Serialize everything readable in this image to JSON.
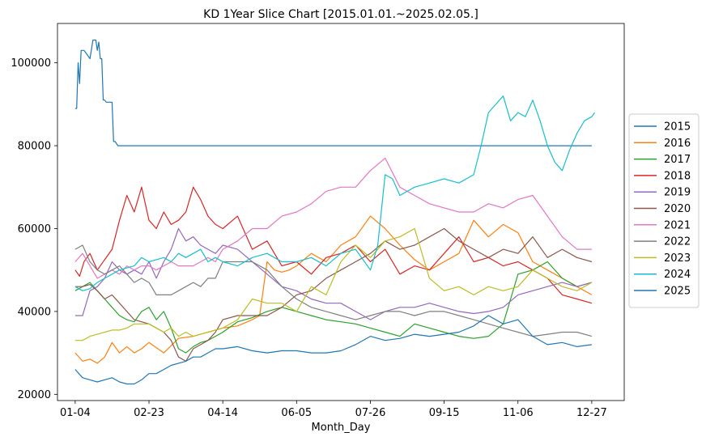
{
  "chart_data": {
    "type": "line",
    "title": "KD 1Year Slice Chart [2015.01.01.~2025.02.05.]",
    "xlabel": "Month_Day",
    "ylabel": "",
    "xlim": [
      -12,
      372
    ],
    "ylim": [
      18500,
      109500
    ],
    "x_ticks": [
      {
        "label": "01-04",
        "value": 0
      },
      {
        "label": "02-23",
        "value": 50
      },
      {
        "label": "04-14",
        "value": 100
      },
      {
        "label": "06-05",
        "value": 150
      },
      {
        "label": "07-26",
        "value": 200
      },
      {
        "label": "09-15",
        "value": 250
      },
      {
        "label": "11-06",
        "value": 300
      },
      {
        "label": "12-27",
        "value": 350
      }
    ],
    "y_ticks": [
      20000,
      40000,
      60000,
      80000,
      100000
    ],
    "grid": false,
    "legend": "right",
    "series": [
      {
        "name": "2015",
        "color": "#1f77b4",
        "x": [
          0,
          1,
          2,
          3,
          4,
          5,
          6,
          8,
          10,
          12,
          14,
          15,
          16,
          17,
          18,
          19,
          20,
          21,
          25,
          26,
          27,
          28,
          29,
          30,
          32,
          35,
          100,
          200,
          300,
          350
        ],
        "y": [
          89000,
          89000,
          100000,
          95000,
          103000,
          103000,
          103000,
          102000,
          101000,
          105500,
          105500,
          103000,
          105000,
          101000,
          101000,
          91000,
          91000,
          90500,
          90500,
          81000,
          81000,
          80500,
          80000,
          80000,
          80000,
          80000,
          80000,
          80000,
          80000,
          80000
        ]
      },
      {
        "name": "2016",
        "color": "#ff7f0e",
        "x": [
          0,
          5,
          10,
          15,
          20,
          25,
          30,
          35,
          40,
          45,
          50,
          60,
          70,
          80,
          90,
          100,
          110,
          120,
          125,
          130,
          135,
          140,
          145,
          150,
          160,
          170,
          180,
          190,
          200,
          210,
          220,
          230,
          240,
          250,
          260,
          270,
          280,
          290,
          300,
          310,
          320,
          330,
          340,
          350
        ],
        "y": [
          30000,
          28000,
          28500,
          27500,
          29000,
          32500,
          30000,
          31500,
          30000,
          31000,
          32500,
          30000,
          33500,
          34000,
          35000,
          36000,
          36500,
          38000,
          39000,
          52000,
          50000,
          49500,
          50000,
          51000,
          54000,
          52000,
          56000,
          58000,
          63000,
          60000,
          56000,
          52500,
          50000,
          52000,
          54000,
          62000,
          58000,
          61000,
          59000,
          52000,
          50000,
          48000,
          46000,
          44000
        ]
      },
      {
        "name": "2017",
        "color": "#2ca02c",
        "x": [
          0,
          5,
          10,
          15,
          20,
          25,
          30,
          35,
          40,
          45,
          50,
          55,
          60,
          65,
          70,
          75,
          80,
          85,
          90,
          95,
          100,
          110,
          120,
          130,
          140,
          150,
          160,
          170,
          180,
          190,
          200,
          210,
          220,
          230,
          240,
          250,
          260,
          270,
          280,
          290,
          300,
          310,
          320,
          330,
          340,
          350
        ],
        "y": [
          45000,
          46000,
          47000,
          45000,
          43000,
          41000,
          39000,
          38000,
          37500,
          40000,
          41000,
          38000,
          40000,
          36000,
          31000,
          30000,
          31500,
          32500,
          33000,
          34000,
          35000,
          37500,
          38500,
          40000,
          41000,
          40000,
          39000,
          38000,
          37500,
          37000,
          36000,
          35000,
          34000,
          37000,
          36000,
          35000,
          34000,
          33500,
          34000,
          37000,
          49000,
          50000,
          52000,
          48000,
          46000,
          47000
        ]
      },
      {
        "name": "2018",
        "color": "#d62728",
        "x": [
          0,
          3,
          6,
          10,
          15,
          20,
          25,
          30,
          35,
          40,
          45,
          50,
          55,
          60,
          65,
          70,
          75,
          80,
          85,
          90,
          95,
          100,
          110,
          120,
          130,
          140,
          150,
          160,
          170,
          180,
          190,
          200,
          210,
          220,
          230,
          240,
          250,
          260,
          270,
          280,
          290,
          300,
          310,
          320,
          330,
          340,
          350
        ],
        "y": [
          50000,
          48500,
          52000,
          54000,
          50000,
          52500,
          55000,
          62000,
          68000,
          64000,
          70000,
          62000,
          60000,
          64000,
          61000,
          62000,
          64000,
          70000,
          67000,
          63000,
          61000,
          60000,
          63000,
          55000,
          57000,
          51000,
          52000,
          49000,
          53000,
          54000,
          56000,
          52000,
          55000,
          49000,
          51000,
          50000,
          54000,
          58000,
          52000,
          53000,
          51000,
          52000,
          50000,
          48000,
          44000,
          43000,
          42000
        ]
      },
      {
        "name": "2019",
        "color": "#9467bd",
        "x": [
          0,
          5,
          10,
          15,
          20,
          25,
          30,
          35,
          40,
          45,
          50,
          55,
          60,
          65,
          70,
          75,
          80,
          85,
          90,
          95,
          100,
          110,
          120,
          130,
          140,
          150,
          160,
          170,
          180,
          190,
          200,
          210,
          220,
          230,
          240,
          250,
          260,
          270,
          280,
          290,
          300,
          310,
          320,
          330,
          340,
          350
        ],
        "y": [
          39000,
          39000,
          45000,
          46000,
          48000,
          52000,
          50000,
          49000,
          50000,
          49000,
          52000,
          48000,
          52000,
          55000,
          60000,
          57000,
          58000,
          56000,
          55000,
          54000,
          56000,
          55000,
          52000,
          49000,
          46000,
          45000,
          43000,
          42000,
          42000,
          40000,
          38000,
          40000,
          41000,
          41000,
          42000,
          41000,
          40000,
          39500,
          40000,
          41000,
          44000,
          45000,
          46000,
          47000,
          46000,
          47000
        ]
      },
      {
        "name": "2020",
        "color": "#8c564b",
        "x": [
          0,
          5,
          10,
          15,
          20,
          25,
          30,
          35,
          40,
          45,
          50,
          55,
          60,
          65,
          70,
          75,
          80,
          85,
          90,
          95,
          100,
          110,
          120,
          130,
          140,
          150,
          160,
          170,
          180,
          190,
          200,
          210,
          220,
          230,
          240,
          250,
          260,
          270,
          280,
          290,
          300,
          310,
          320,
          330,
          340,
          350
        ],
        "y": [
          46000,
          46000,
          46500,
          45000,
          43000,
          44000,
          42000,
          40000,
          38000,
          37500,
          37000,
          36000,
          35000,
          33000,
          29000,
          28000,
          31000,
          32000,
          33000,
          35000,
          38000,
          39000,
          39000,
          39000,
          41000,
          44000,
          45000,
          48000,
          50000,
          52000,
          54000,
          57000,
          55000,
          56000,
          58000,
          60000,
          57000,
          55000,
          53000,
          55000,
          54000,
          58000,
          53000,
          55000,
          53000,
          52000
        ]
      },
      {
        "name": "2021",
        "color": "#e377c2",
        "x": [
          0,
          5,
          10,
          15,
          20,
          25,
          30,
          35,
          40,
          45,
          50,
          55,
          60,
          65,
          70,
          75,
          80,
          85,
          90,
          95,
          100,
          110,
          120,
          130,
          140,
          150,
          160,
          170,
          180,
          190,
          200,
          210,
          220,
          230,
          240,
          250,
          260,
          270,
          280,
          290,
          300,
          310,
          320,
          330,
          340,
          350
        ],
        "y": [
          52000,
          54000,
          51000,
          48000,
          49000,
          50000,
          49000,
          51000,
          50000,
          51000,
          51000,
          50000,
          51000,
          52000,
          51000,
          51000,
          51000,
          52000,
          53000,
          52000,
          55000,
          57000,
          60000,
          60000,
          63000,
          64000,
          66000,
          69000,
          70000,
          70000,
          74000,
          77000,
          70000,
          68000,
          66000,
          65000,
          64000,
          64000,
          66000,
          65000,
          67000,
          68000,
          63000,
          58000,
          55000,
          55000
        ]
      },
      {
        "name": "2022",
        "color": "#7f7f7f",
        "x": [
          0,
          5,
          10,
          15,
          20,
          25,
          30,
          35,
          40,
          45,
          50,
          55,
          60,
          65,
          70,
          75,
          80,
          85,
          90,
          95,
          100,
          110,
          120,
          130,
          140,
          150,
          160,
          170,
          180,
          190,
          200,
          210,
          220,
          230,
          240,
          250,
          260,
          270,
          280,
          290,
          300,
          310,
          320,
          330,
          340,
          350
        ],
        "y": [
          55000,
          56000,
          52000,
          50000,
          49000,
          50000,
          51000,
          49000,
          47000,
          48000,
          47000,
          44000,
          44000,
          44000,
          45000,
          46000,
          47000,
          46000,
          48000,
          48000,
          52000,
          52000,
          52000,
          50000,
          46000,
          43000,
          41000,
          40000,
          39000,
          38000,
          39000,
          40000,
          40000,
          39000,
          40000,
          40000,
          39000,
          38000,
          37000,
          36000,
          35000,
          34000,
          34500,
          35000,
          35000,
          34000
        ]
      },
      {
        "name": "2023",
        "color": "#bcbd22",
        "x": [
          0,
          5,
          10,
          15,
          20,
          25,
          30,
          35,
          40,
          45,
          50,
          55,
          60,
          65,
          70,
          75,
          80,
          85,
          90,
          95,
          100,
          110,
          120,
          130,
          140,
          150,
          160,
          170,
          180,
          190,
          200,
          210,
          220,
          230,
          240,
          250,
          260,
          270,
          280,
          290,
          300,
          310,
          320,
          330,
          340,
          350
        ],
        "y": [
          33000,
          33000,
          34000,
          34500,
          35000,
          35500,
          35500,
          36000,
          37000,
          37000,
          37000,
          36000,
          35000,
          36000,
          34000,
          35000,
          34000,
          34500,
          35000,
          35500,
          36000,
          38000,
          43000,
          42000,
          42000,
          40000,
          46000,
          44000,
          52000,
          56000,
          53000,
          57000,
          58000,
          60000,
          48000,
          45000,
          46000,
          44000,
          46000,
          45000,
          46000,
          50000,
          48000,
          46000,
          45000,
          47000
        ]
      },
      {
        "name": "2024",
        "color": "#17becf",
        "x": [
          0,
          5,
          10,
          15,
          20,
          25,
          30,
          35,
          40,
          45,
          50,
          55,
          60,
          65,
          70,
          75,
          80,
          85,
          90,
          95,
          100,
          110,
          120,
          130,
          140,
          150,
          160,
          170,
          180,
          190,
          200,
          205,
          210,
          215,
          220,
          230,
          240,
          250,
          260,
          270,
          275,
          280,
          285,
          290,
          295,
          300,
          305,
          310,
          315,
          320,
          325,
          330,
          335,
          340,
          345,
          350,
          352
        ],
        "y": [
          46000,
          45000,
          45500,
          47000,
          48000,
          49000,
          50000,
          50500,
          51000,
          53000,
          52000,
          52500,
          53000,
          52000,
          54000,
          53000,
          54000,
          55000,
          52000,
          53000,
          52000,
          51000,
          53000,
          54000,
          52000,
          52000,
          53000,
          51000,
          54000,
          55000,
          50000,
          56000,
          73000,
          72000,
          68000,
          70000,
          71000,
          72000,
          71000,
          73000,
          80000,
          88000,
          90000,
          92000,
          86000,
          88000,
          87000,
          91000,
          86000,
          80000,
          76000,
          74000,
          79000,
          83000,
          86000,
          87000,
          88000
        ]
      },
      {
        "name": "2025",
        "color": "#1f77b4",
        "x": [
          0,
          5,
          10,
          15,
          20,
          25,
          30,
          35,
          40,
          45,
          50,
          55,
          60,
          65,
          70,
          75,
          80,
          85,
          90,
          95,
          100,
          110,
          120,
          130,
          140,
          150,
          160,
          170,
          180,
          190,
          200,
          210,
          220,
          230,
          240,
          250,
          260,
          270,
          280,
          290,
          300,
          310,
          320,
          330,
          340,
          350
        ],
        "y": [
          26000,
          24000,
          23500,
          23000,
          23500,
          24000,
          23000,
          22500,
          22500,
          23500,
          25000,
          25000,
          26000,
          27000,
          27500,
          28000,
          29000,
          29000,
          30000,
          31000,
          31000,
          31500,
          30500,
          30000,
          30500,
          30500,
          30000,
          30000,
          30500,
          32000,
          34000,
          33000,
          33500,
          34500,
          34000,
          34500,
          35000,
          36500,
          39000,
          37000,
          38000,
          34000,
          32000,
          32500,
          31500,
          32000
        ]
      }
    ]
  }
}
